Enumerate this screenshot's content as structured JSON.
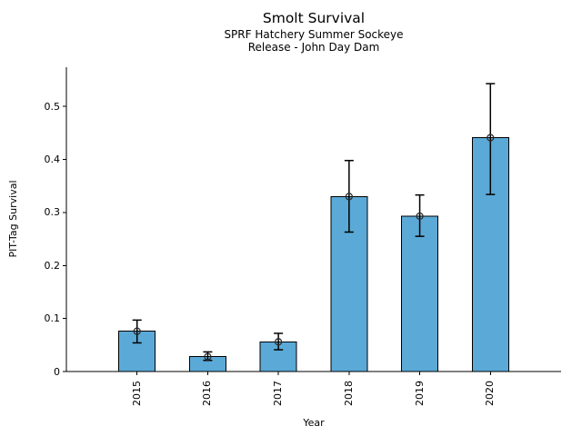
{
  "chart_data": {
    "type": "bar",
    "title": "Smolt Survival",
    "subtitle1": "SPRF Hatchery Summer Sockeye",
    "subtitle2": "Release - John Day Dam",
    "xlabel": "Year",
    "ylabel": "PIT-Tag Survival",
    "categories": [
      "2015",
      "2016",
      "2017",
      "2018",
      "2019",
      "2020"
    ],
    "values": [
      0.076,
      0.028,
      0.056,
      0.33,
      0.293,
      0.441
    ],
    "error_low": [
      0.054,
      0.021,
      0.041,
      0.263,
      0.255,
      0.334
    ],
    "error_high": [
      0.097,
      0.037,
      0.072,
      0.398,
      0.333,
      0.543
    ],
    "ylim": [
      0,
      0.574
    ],
    "yticks": [
      0,
      0.1,
      0.2,
      0.3,
      0.4,
      0.5
    ],
    "ytick_labels": [
      "0",
      "0.1",
      "0.2",
      "0.3",
      "0.4",
      "0.5"
    ],
    "grid": false,
    "legend_position": "none",
    "marker": "open-circle",
    "colors": {
      "bar_fill": "#5BA9D6",
      "bar_edge": "#000000",
      "error_bar": "#000000",
      "marker_edge": "#2b2b2b",
      "axis": "#000000",
      "text": "#000000",
      "background": "#ffffff"
    }
  }
}
